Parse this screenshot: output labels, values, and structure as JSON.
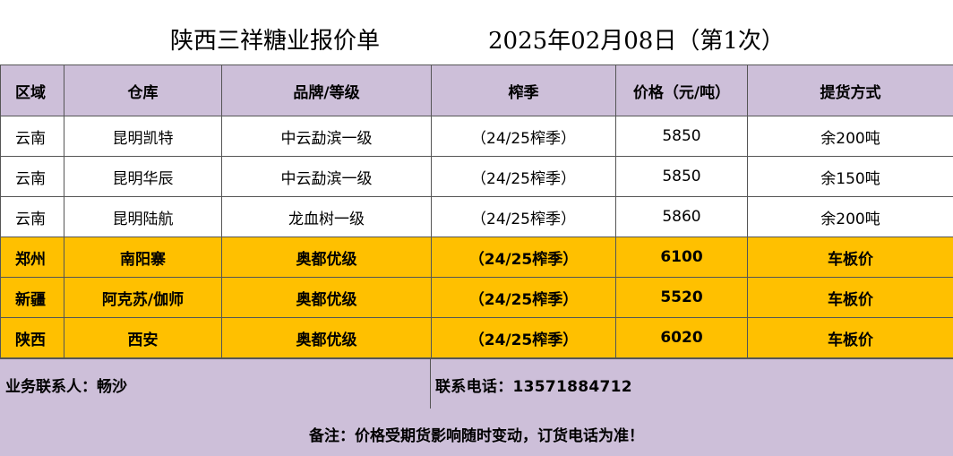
{
  "title": {
    "company": "陕西三祥糖业报价单",
    "date": "2025年02月08日（第1次）"
  },
  "table": {
    "headers": [
      "区域",
      "仓库",
      "品牌/等级",
      "榨季",
      "价格（元/吨）",
      "提货方式"
    ],
    "rows": [
      [
        "云南",
        "昆明凯特",
        "中云勐滨一级",
        "（24/25榨季）",
        "5850",
        "余200吨"
      ],
      [
        "云南",
        "昆明华辰",
        "中云勐滨一级",
        "（24/25榨季）",
        "5850",
        "余150吨"
      ],
      [
        "云南",
        "昆明陆航",
        "龙血树一级",
        "（24/25榨季）",
        "5860",
        "余200吨"
      ],
      [
        "郑州",
        "南阳寨",
        "奥都优级",
        "（24/25榨季）",
        "6100",
        "车板价"
      ],
      [
        "新疆",
        "阿克苏/伽师",
        "奥都优级",
        "（24/25榨季）",
        "5520",
        "车板价"
      ],
      [
        "陕西",
        "西安",
        "奥都优级",
        "（24/25榨季）",
        "6020",
        "车板价"
      ]
    ]
  },
  "footer": {
    "contact_person": "业务联系人：畅沙",
    "contact_phone": "联系电话：13571884712",
    "note": "备注：价格受期货影响随时变动，订货电话为准！"
  },
  "colors": {
    "header_bg": "#cdbfd9",
    "highlight_bg": "#ffc000",
    "border": "#555555"
  }
}
